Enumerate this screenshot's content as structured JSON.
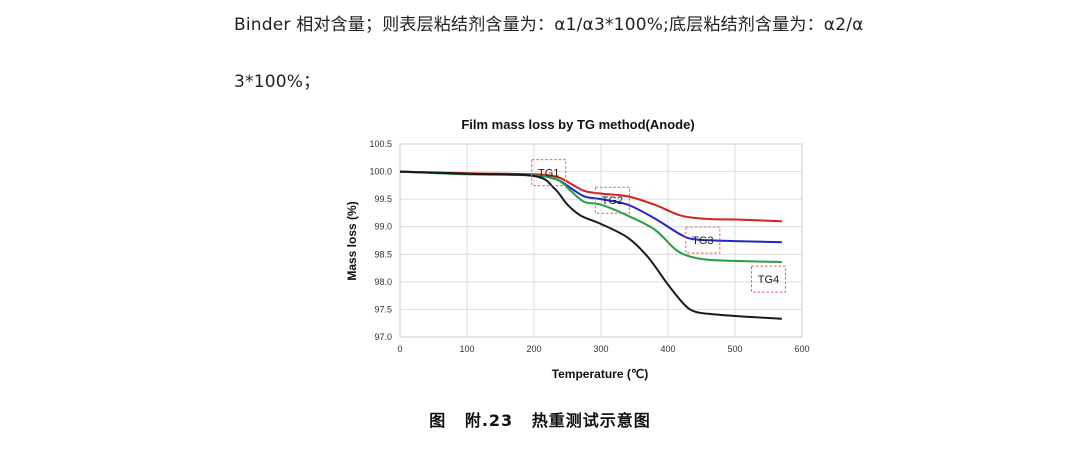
{
  "text": {
    "line1": "Binder 相对含量；则表层粘结剂含量为：α1/α3*100%;底层粘结剂含量为：α2/α",
    "line2": "3*100%；"
  },
  "caption": {
    "prefix": "图",
    "number": "附.23",
    "title": "热重测试示意图"
  },
  "chart_data": {
    "type": "line",
    "title": "Film mass loss by TG method(Anode)",
    "xlabel": "Temperature (℃)",
    "ylabel": "Mass loss (%)",
    "xlim": [
      0,
      600
    ],
    "ylim": [
      97.0,
      100.5
    ],
    "xticks": [
      0,
      100,
      200,
      300,
      400,
      500,
      600
    ],
    "yticks": [
      97.0,
      97.5,
      98.0,
      98.5,
      99.0,
      99.5,
      100.0,
      100.5
    ],
    "grid": true,
    "series": [
      {
        "color": "#d42020",
        "x": [
          0,
          100,
          200,
          235,
          255,
          275,
          300,
          340,
          380,
          420,
          460,
          500,
          570
        ],
        "y": [
          100.0,
          99.97,
          99.95,
          99.9,
          99.78,
          99.65,
          99.6,
          99.55,
          99.4,
          99.2,
          99.14,
          99.13,
          99.1
        ]
      },
      {
        "color": "#2424c8",
        "x": [
          0,
          100,
          200,
          235,
          255,
          275,
          300,
          340,
          380,
          420,
          440,
          470,
          500,
          570
        ],
        "y": [
          100.0,
          99.96,
          99.93,
          99.85,
          99.7,
          99.55,
          99.5,
          99.4,
          99.15,
          98.85,
          98.77,
          98.75,
          98.74,
          98.72
        ]
      },
      {
        "color": "#23a040",
        "x": [
          0,
          100,
          200,
          235,
          255,
          275,
          300,
          340,
          380,
          410,
          430,
          460,
          500,
          570
        ],
        "y": [
          100.0,
          99.95,
          99.93,
          99.85,
          99.65,
          99.45,
          99.4,
          99.2,
          98.95,
          98.6,
          98.47,
          98.4,
          98.38,
          98.36
        ]
      },
      {
        "color": "#1a1a1a",
        "x": [
          0,
          100,
          200,
          230,
          250,
          270,
          300,
          340,
          370,
          400,
          425,
          440,
          460,
          500,
          570
        ],
        "y": [
          100.0,
          99.96,
          99.92,
          99.7,
          99.4,
          99.2,
          99.05,
          98.8,
          98.45,
          97.95,
          97.58,
          97.46,
          97.42,
          97.38,
          97.33
        ]
      }
    ],
    "annotations": [
      {
        "text": "TG1",
        "x": 222,
        "y": 99.98
      },
      {
        "text": "TG2",
        "x": 317,
        "y": 99.48
      },
      {
        "text": "TG3",
        "x": 452,
        "y": 98.76
      },
      {
        "text": "TG4",
        "x": 550,
        "y": 98.05
      }
    ]
  }
}
